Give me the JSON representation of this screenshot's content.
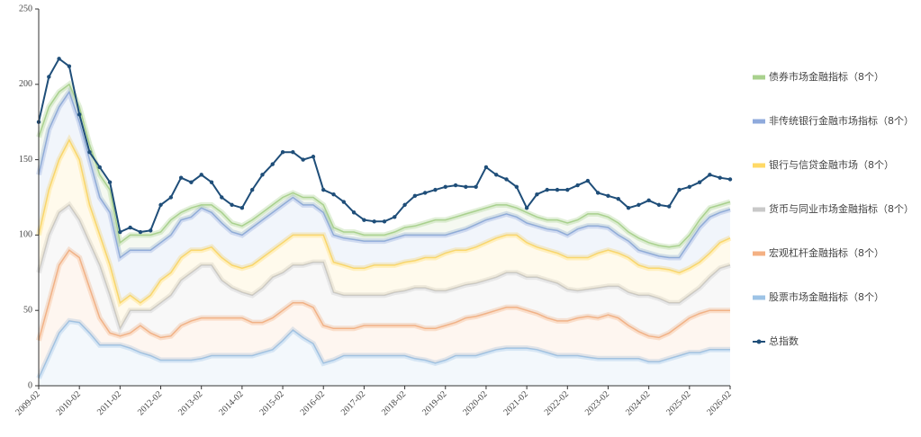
{
  "chart_data": {
    "type": "stacked_area",
    "categories": [
      "2009-02",
      null,
      null,
      null,
      "2010-02",
      null,
      null,
      null,
      "2011-02",
      null,
      null,
      null,
      "2012-02",
      null,
      null,
      null,
      "2013-02",
      null,
      null,
      null,
      "2014-02",
      null,
      null,
      null,
      "2015-02",
      null,
      null,
      null,
      "2016-02",
      null,
      null,
      null,
      "2017-02",
      null,
      null,
      null,
      "2018-02",
      null,
      null,
      null,
      "2019-02",
      null,
      null,
      null,
      "2020-02",
      null,
      null,
      null,
      "2021-02",
      null,
      null,
      null,
      "2022-02",
      null,
      null,
      null,
      "2023-02",
      null,
      null,
      null,
      "2024-02",
      null,
      null,
      null,
      "2025-02",
      null,
      null,
      null,
      "2026-02"
    ],
    "ylim": [
      0,
      250
    ],
    "yticks": [
      0,
      50,
      100,
      150,
      200,
      250
    ],
    "series": [
      {
        "name": "债券市场金融指标（8个）",
        "color": "#a9d18e",
        "values": [
          25,
          15,
          10,
          5,
          10,
          10,
          15,
          15,
          10,
          10,
          10,
          10,
          7,
          10,
          5,
          6,
          2,
          5,
          7,
          6,
          6,
          5,
          5,
          5,
          5,
          3,
          5,
          5,
          5,
          5,
          4,
          5,
          4,
          4,
          4,
          4,
          5,
          6,
          8,
          10,
          10,
          10,
          10,
          9,
          8,
          8,
          6,
          6,
          7,
          6,
          6,
          7,
          8,
          6,
          8,
          8,
          7,
          8,
          6,
          8,
          7,
          7,
          7,
          8,
          5,
          5,
          6,
          5,
          5
        ]
      },
      {
        "name": "非传统银行金融市场指标（8个）",
        "color": "#8faadc",
        "values": [
          40,
          40,
          35,
          32,
          25,
          30,
          25,
          35,
          30,
          30,
          35,
          30,
          25,
          25,
          25,
          22,
          28,
          23,
          23,
          22,
          22,
          25,
          25,
          25,
          25,
          25,
          20,
          20,
          15,
          18,
          18,
          19,
          18,
          16,
          16,
          18,
          18,
          17,
          15,
          15,
          12,
          12,
          14,
          15,
          15,
          14,
          14,
          12,
          13,
          14,
          14,
          15,
          15,
          19,
          21,
          18,
          15,
          12,
          11,
          10,
          10,
          8,
          8,
          10,
          17,
          23,
          24,
          20,
          19
        ]
      },
      {
        "name": "银行与信贷金融市场（8个）",
        "color": "#ffd966",
        "values": [
          25,
          30,
          35,
          43,
          40,
          25,
          20,
          20,
          17,
          10,
          5,
          10,
          15,
          15,
          15,
          15,
          10,
          12,
          15,
          15,
          16,
          20,
          20,
          18,
          20,
          20,
          20,
          18,
          18,
          20,
          20,
          18,
          18,
          20,
          20,
          18,
          19,
          18,
          20,
          22,
          25,
          25,
          23,
          24,
          25,
          26,
          25,
          25,
          23,
          20,
          20,
          20,
          21,
          22,
          21,
          23,
          24,
          22,
          23,
          20,
          18,
          20,
          22,
          20,
          18,
          17,
          16,
          17,
          18
        ]
      },
      {
        "name": "货币与同业市场金融指标（8个）",
        "color": "#c9c9c9",
        "values": [
          45,
          45,
          35,
          30,
          25,
          30,
          35,
          25,
          5,
          15,
          10,
          15,
          23,
          27,
          30,
          32,
          35,
          35,
          25,
          20,
          17,
          18,
          23,
          27,
          25,
          25,
          25,
          30,
          42,
          24,
          22,
          22,
          20,
          20,
          20,
          22,
          23,
          25,
          27,
          25,
          23,
          23,
          22,
          22,
          22,
          22,
          23,
          23,
          22,
          24,
          25,
          25,
          21,
          18,
          18,
          20,
          19,
          21,
          22,
          24,
          27,
          26,
          20,
          15,
          15,
          17,
          22,
          28,
          30
        ]
      },
      {
        "name": "宏观杠杆金融指标（8个）",
        "color": "#f4b183",
        "values": [
          25,
          35,
          45,
          47,
          43,
          30,
          18,
          8,
          6,
          10,
          18,
          15,
          15,
          16,
          23,
          26,
          27,
          25,
          25,
          25,
          25,
          22,
          20,
          21,
          20,
          18,
          23,
          24,
          25,
          21,
          18,
          18,
          20,
          20,
          20,
          20,
          20,
          22,
          21,
          23,
          23,
          22,
          25,
          26,
          26,
          26,
          27,
          27,
          25,
          24,
          23,
          23,
          23,
          25,
          27,
          27,
          29,
          27,
          22,
          18,
          17,
          16,
          17,
          20,
          23,
          26,
          26,
          26,
          26
        ]
      },
      {
        "name": "股票市场金融指标（8个）",
        "color": "#9dc3e6",
        "values": [
          5,
          20,
          35,
          43,
          42,
          35,
          27,
          27,
          27,
          25,
          22,
          20,
          17,
          17,
          17,
          17,
          18,
          20,
          20,
          20,
          20,
          20,
          22,
          24,
          30,
          37,
          32,
          28,
          15,
          17,
          20,
          20,
          20,
          20,
          20,
          20,
          20,
          18,
          17,
          15,
          17,
          20,
          20,
          20,
          22,
          24,
          25,
          25,
          25,
          24,
          22,
          20,
          20,
          20,
          19,
          18,
          18,
          18,
          18,
          18,
          16,
          16,
          18,
          20,
          22,
          22,
          24,
          24,
          24
        ]
      }
    ],
    "line": {
      "name": "总指数",
      "color": "#1f4e79",
      "values": [
        175,
        205,
        217,
        212,
        180,
        155,
        145,
        135,
        102,
        105,
        102,
        103,
        120,
        125,
        138,
        135,
        140,
        135,
        125,
        120,
        118,
        130,
        140,
        147,
        155,
        155,
        150,
        152,
        130,
        127,
        122,
        115,
        110,
        109,
        109,
        112,
        120,
        126,
        128,
        130,
        132,
        133,
        132,
        132,
        145,
        140,
        137,
        132,
        118,
        127,
        130,
        130,
        130,
        133,
        136,
        128,
        126,
        124,
        118,
        120,
        123,
        120,
        119,
        130,
        132,
        135,
        140,
        138,
        137
      ]
    }
  }
}
